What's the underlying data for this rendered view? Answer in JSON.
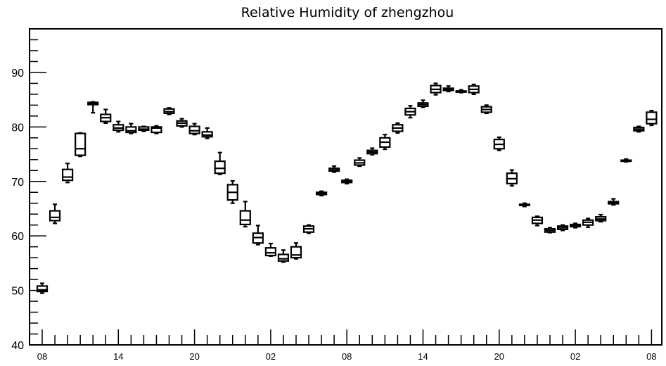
{
  "chart_data": {
    "type": "boxplot",
    "title": "Relative Humidity of zhengzhou",
    "xlabel": "",
    "ylabel": "",
    "ylim": [
      40,
      98
    ],
    "yticks": [
      40,
      50,
      60,
      70,
      80,
      90
    ],
    "grid": false,
    "legend": "none",
    "xtick_labels": [
      "08",
      "14",
      "20",
      "02",
      "08",
      "14",
      "20",
      "02",
      "08"
    ],
    "xtick_label_positions": [
      0,
      6,
      12,
      18,
      24,
      30,
      36,
      42,
      48
    ],
    "boxes": [
      {
        "x": 0,
        "min": 49.5,
        "q1": 49.8,
        "median": 50.1,
        "q3": 50.8,
        "max": 51.3
      },
      {
        "x": 1,
        "min": 62.3,
        "q1": 62.8,
        "median": 63.4,
        "q3": 64.6,
        "max": 65.8
      },
      {
        "x": 2,
        "min": 69.8,
        "q1": 70.2,
        "median": 70.8,
        "q3": 72.2,
        "max": 73.3
      },
      {
        "x": 3,
        "min": 74.6,
        "q1": 74.8,
        "median": 76.0,
        "q3": 78.8,
        "max": 78.9
      },
      {
        "x": 4,
        "min": 82.6,
        "q1": 84.1,
        "median": 84.3,
        "q3": 84.5,
        "max": 84.6
      },
      {
        "x": 5,
        "min": 80.7,
        "q1": 81.0,
        "median": 81.7,
        "q3": 82.3,
        "max": 83.2
      },
      {
        "x": 6,
        "min": 79.1,
        "q1": 79.4,
        "median": 79.8,
        "q3": 80.4,
        "max": 81.0
      },
      {
        "x": 7,
        "min": 78.8,
        "q1": 79.0,
        "median": 79.3,
        "q3": 80.0,
        "max": 80.6
      },
      {
        "x": 8,
        "min": 79.2,
        "q1": 79.4,
        "median": 79.6,
        "q3": 80.0,
        "max": 80.1
      },
      {
        "x": 9,
        "min": 78.8,
        "q1": 79.0,
        "median": 79.8,
        "q3": 80.0,
        "max": 80.2
      },
      {
        "x": 10,
        "min": 82.3,
        "q1": 82.5,
        "median": 82.8,
        "q3": 83.3,
        "max": 83.5
      },
      {
        "x": 11,
        "min": 80.0,
        "q1": 80.2,
        "median": 80.7,
        "q3": 81.1,
        "max": 81.5
      },
      {
        "x": 12,
        "min": 78.6,
        "q1": 78.8,
        "median": 79.3,
        "q3": 80.1,
        "max": 80.6
      },
      {
        "x": 13,
        "min": 77.9,
        "q1": 78.2,
        "median": 78.5,
        "q3": 79.1,
        "max": 79.8
      },
      {
        "x": 14,
        "min": 71.3,
        "q1": 71.5,
        "median": 72.4,
        "q3": 73.7,
        "max": 75.3
      },
      {
        "x": 15,
        "min": 66.0,
        "q1": 66.6,
        "median": 68.0,
        "q3": 69.4,
        "max": 70.1
      },
      {
        "x": 16,
        "min": 61.7,
        "q1": 62.1,
        "median": 62.9,
        "q3": 64.6,
        "max": 66.3
      },
      {
        "x": 17,
        "min": 58.4,
        "q1": 58.7,
        "median": 59.7,
        "q3": 60.5,
        "max": 61.9
      },
      {
        "x": 18,
        "min": 56.3,
        "q1": 56.4,
        "median": 56.9,
        "q3": 57.8,
        "max": 58.6
      },
      {
        "x": 19,
        "min": 55.2,
        "q1": 55.4,
        "median": 55.8,
        "q3": 56.6,
        "max": 57.4
      },
      {
        "x": 20,
        "min": 55.8,
        "q1": 56.0,
        "median": 56.5,
        "q3": 58.0,
        "max": 58.7
      },
      {
        "x": 21,
        "min": 60.5,
        "q1": 60.7,
        "median": 61.3,
        "q3": 61.8,
        "max": 62.0
      },
      {
        "x": 22,
        "min": 67.4,
        "q1": 67.6,
        "median": 67.8,
        "q3": 68.0,
        "max": 68.2
      },
      {
        "x": 23,
        "min": 71.7,
        "q1": 71.9,
        "median": 72.1,
        "q3": 72.4,
        "max": 72.8
      },
      {
        "x": 24,
        "min": 69.6,
        "q1": 69.8,
        "median": 70.0,
        "q3": 70.2,
        "max": 70.4
      },
      {
        "x": 25,
        "min": 72.8,
        "q1": 73.0,
        "median": 73.4,
        "q3": 73.9,
        "max": 74.3
      },
      {
        "x": 26,
        "min": 74.9,
        "q1": 75.1,
        "median": 75.4,
        "q3": 75.7,
        "max": 76.1
      },
      {
        "x": 27,
        "min": 75.9,
        "q1": 76.3,
        "median": 77.2,
        "q3": 78.0,
        "max": 78.6
      },
      {
        "x": 28,
        "min": 78.9,
        "q1": 79.2,
        "median": 79.8,
        "q3": 80.4,
        "max": 80.7
      },
      {
        "x": 29,
        "min": 81.7,
        "q1": 82.2,
        "median": 82.8,
        "q3": 83.4,
        "max": 83.9
      },
      {
        "x": 30,
        "min": 83.6,
        "q1": 83.8,
        "median": 84.1,
        "q3": 84.4,
        "max": 84.9
      },
      {
        "x": 31,
        "min": 85.9,
        "q1": 86.3,
        "median": 86.9,
        "q3": 87.6,
        "max": 88.0
      },
      {
        "x": 32,
        "min": 86.5,
        "q1": 86.7,
        "median": 86.9,
        "q3": 87.1,
        "max": 87.5
      },
      {
        "x": 33,
        "min": 86.3,
        "q1": 86.4,
        "median": 86.5,
        "q3": 86.6,
        "max": 86.8
      },
      {
        "x": 34,
        "min": 86.0,
        "q1": 86.3,
        "median": 86.9,
        "q3": 87.5,
        "max": 87.8
      },
      {
        "x": 35,
        "min": 82.5,
        "q1": 82.7,
        "median": 83.2,
        "q3": 83.7,
        "max": 84.0
      },
      {
        "x": 36,
        "min": 75.7,
        "q1": 76.0,
        "median": 76.8,
        "q3": 77.7,
        "max": 78.1
      },
      {
        "x": 37,
        "min": 69.2,
        "q1": 69.6,
        "median": 70.5,
        "q3": 71.5,
        "max": 72.1
      },
      {
        "x": 38,
        "min": 65.4,
        "q1": 65.6,
        "median": 65.7,
        "q3": 65.8,
        "max": 66.0
      },
      {
        "x": 39,
        "min": 61.9,
        "q1": 62.3,
        "median": 62.9,
        "q3": 63.4,
        "max": 63.6
      },
      {
        "x": 40,
        "min": 60.6,
        "q1": 60.7,
        "median": 61.0,
        "q3": 61.3,
        "max": 61.5
      },
      {
        "x": 41,
        "min": 61.0,
        "q1": 61.2,
        "median": 61.5,
        "q3": 61.8,
        "max": 62.0
      },
      {
        "x": 42,
        "min": 61.5,
        "q1": 61.7,
        "median": 61.9,
        "q3": 62.1,
        "max": 62.3
      },
      {
        "x": 43,
        "min": 61.6,
        "q1": 62.0,
        "median": 62.5,
        "q3": 62.9,
        "max": 63.2
      },
      {
        "x": 44,
        "min": 62.6,
        "q1": 62.8,
        "median": 63.1,
        "q3": 63.5,
        "max": 63.9
      },
      {
        "x": 45,
        "min": 65.7,
        "q1": 65.9,
        "median": 66.1,
        "q3": 66.3,
        "max": 66.8
      },
      {
        "x": 46,
        "min": 73.6,
        "q1": 73.7,
        "median": 73.8,
        "q3": 73.9,
        "max": 74.1
      },
      {
        "x": 47,
        "min": 79.1,
        "q1": 79.3,
        "median": 79.6,
        "q3": 79.9,
        "max": 80.1
      },
      {
        "x": 48,
        "min": 80.3,
        "q1": 80.6,
        "median": 81.4,
        "q3": 82.7,
        "max": 83.0
      }
    ]
  }
}
